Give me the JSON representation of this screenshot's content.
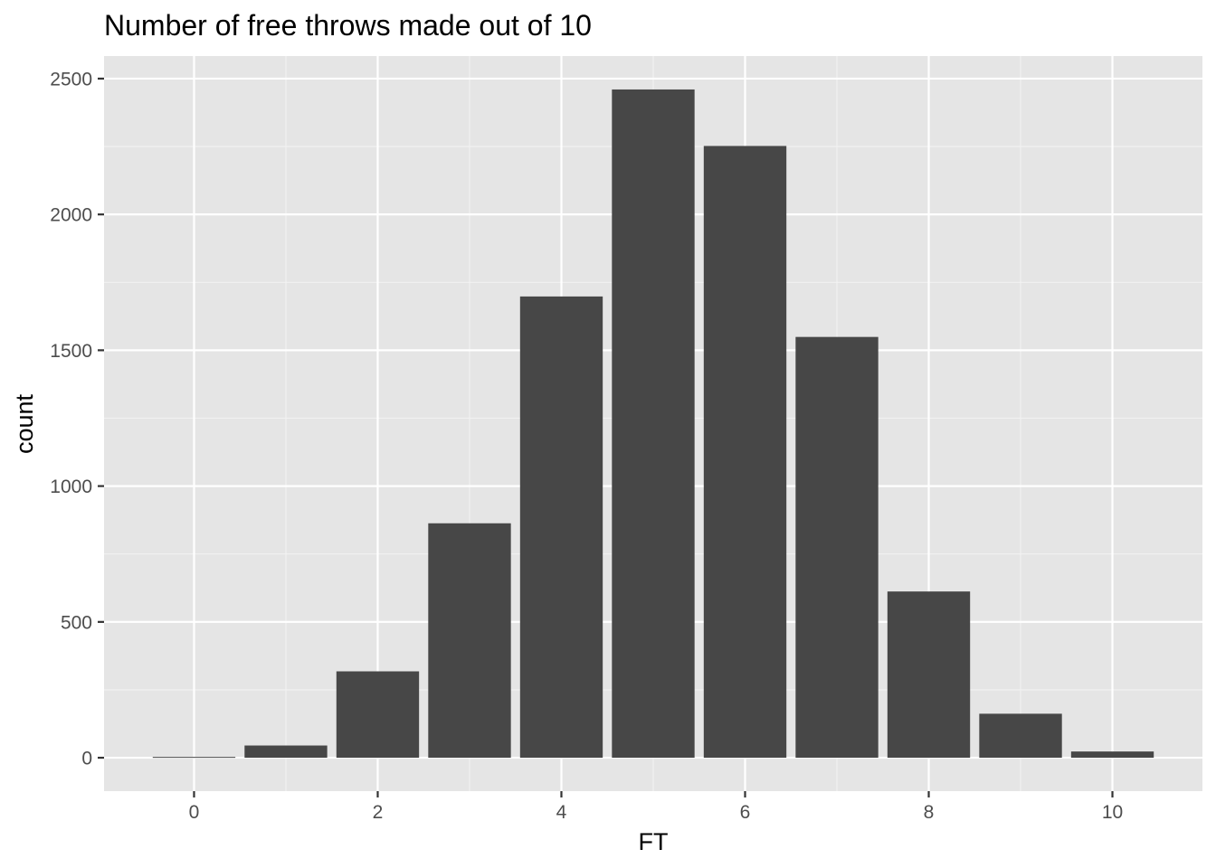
{
  "chart_data": {
    "type": "bar",
    "title": "Number of free throws made out of 10",
    "xlabel": "FT",
    "ylabel": "count",
    "x": [
      0,
      1,
      2,
      3,
      4,
      5,
      6,
      7,
      8,
      9,
      10
    ],
    "values": [
      3,
      45,
      318,
      863,
      1698,
      2460,
      2252,
      1549,
      612,
      162,
      23
    ],
    "x_ticks": [
      0,
      2,
      4,
      6,
      8,
      10
    ],
    "y_ticks": [
      0,
      500,
      1000,
      1500,
      2000,
      2500
    ],
    "xlim": [
      -0.98,
      10.98
    ],
    "ylim": [
      -123,
      2583
    ],
    "grid": true,
    "legend": "none",
    "colors": {
      "panel_background": "#e5e5e5",
      "grid_major": "#ffffff",
      "grid_minor": "#f2f2f2",
      "bar_fill": "#474747",
      "tick_text": "#4d4d4d",
      "tick_mark": "#333333"
    }
  }
}
